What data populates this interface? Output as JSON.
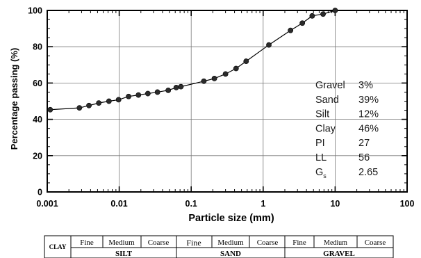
{
  "chart_data": {
    "type": "line",
    "xlabel": "Particle size (mm)",
    "ylabel": "Percentage passing (%)",
    "xscale": "log",
    "xlim": [
      0.001,
      100
    ],
    "ylim": [
      0,
      100
    ],
    "grid": true,
    "x_tick_labels": [
      "0.001",
      "0.01",
      "0.1",
      "1",
      "10",
      "100"
    ],
    "y_tick_labels": [
      "0",
      "20",
      "40",
      "60",
      "80",
      "100"
    ],
    "x_ticks": [
      0.001,
      0.01,
      0.1,
      1,
      10,
      100
    ],
    "y_ticks": [
      0,
      20,
      40,
      60,
      80,
      100
    ],
    "series": [
      {
        "x": [
          0.0011,
          0.0028,
          0.0038,
          0.0052,
          0.0072,
          0.0098,
          0.0135,
          0.0185,
          0.025,
          0.034,
          0.048,
          0.062,
          0.072,
          0.15,
          0.21,
          0.3,
          0.42,
          0.58,
          1.2,
          2.4,
          3.5,
          4.8,
          6.8,
          10
        ],
        "y": [
          45.3,
          46.3,
          47.6,
          49.0,
          50.0,
          50.8,
          52.6,
          53.4,
          54.2,
          55.0,
          56.0,
          57.5,
          58.0,
          61.0,
          62.5,
          65.0,
          68.0,
          72.0,
          81.0,
          89.0,
          93.0,
          97.0,
          98.0,
          100.0
        ]
      }
    ],
    "annotations": [
      {
        "label": "Gravel",
        "value": "3%"
      },
      {
        "label": "Sand",
        "value": "39%"
      },
      {
        "label": "Silt",
        "value": "12%"
      },
      {
        "label": "Clay",
        "value": "46%"
      },
      {
        "label": "PI",
        "value": "27"
      },
      {
        "label": "LL",
        "value": "56"
      },
      {
        "label": "G",
        "sub": "s",
        "value": "2.65"
      }
    ]
  },
  "classification": {
    "clay": "CLAY",
    "silt": {
      "name": "SILT",
      "subs": [
        "Fine",
        "Medium",
        "Coarse"
      ]
    },
    "sand": {
      "name": "SAND",
      "subs": [
        "Fine",
        "Medium",
        "Coarse"
      ]
    },
    "gravel": {
      "name": "GRAVEL",
      "subs": [
        "Fine",
        "Medium",
        "Coarse"
      ]
    }
  }
}
